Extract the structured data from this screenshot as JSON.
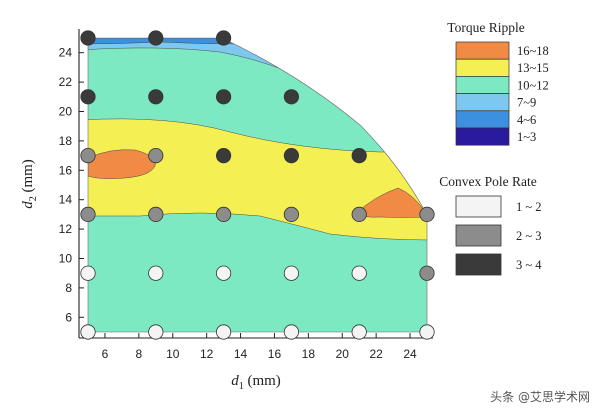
{
  "chart_data": {
    "type": "contour",
    "xlabel_main": "d",
    "xlabel_sub": "1",
    "xlabel_unit": " (mm)",
    "ylabel_main": "d",
    "ylabel_sub": "2",
    "ylabel_unit": " (mm)",
    "xlim": [
      4,
      26
    ],
    "ylim": [
      4,
      25.5
    ],
    "xticks": [
      6,
      8,
      10,
      12,
      14,
      16,
      18,
      20,
      22,
      24
    ],
    "yticks": [
      6,
      8,
      10,
      12,
      14,
      16,
      18,
      20,
      22,
      24
    ],
    "bands": [
      {
        "label": "1~3",
        "color": "#2a1a9e"
      },
      {
        "label": "4~6",
        "color": "#3d8fe0"
      },
      {
        "label": "7~9",
        "color": "#7ec8f0"
      },
      {
        "label": "10~12",
        "color": "#7de9c2"
      },
      {
        "label": "13~15",
        "color": "#f4ef52"
      },
      {
        "label": "16~18",
        "color": "#f08a44"
      }
    ],
    "legend_torque_title": "Torque Ripple",
    "legend_torque": [
      {
        "label": "16~18",
        "color": "#f08a44"
      },
      {
        "label": "13~15",
        "color": "#f4ef52"
      },
      {
        "label": "10~12",
        "color": "#7de9c2"
      },
      {
        "label": "7~9",
        "color": "#7ec8f0"
      },
      {
        "label": "4~6",
        "color": "#3d8fe0"
      },
      {
        "label": "1~3",
        "color": "#2a1a9e"
      }
    ],
    "legend_pole_title": "Convex Pole Rate",
    "legend_pole": [
      {
        "label": "1 ~ 2",
        "color": "#f4f4f4"
      },
      {
        "label": "2 ~ 3",
        "color": "#8c8c8c"
      },
      {
        "label": "3 ~ 4",
        "color": "#3a3a3a"
      }
    ],
    "points": [
      {
        "x": 5,
        "y": 25,
        "rate": "3 ~ 4"
      },
      {
        "x": 9,
        "y": 25,
        "rate": "3 ~ 4"
      },
      {
        "x": 13,
        "y": 25,
        "rate": "3 ~ 4"
      },
      {
        "x": 5,
        "y": 21,
        "rate": "3 ~ 4"
      },
      {
        "x": 9,
        "y": 21,
        "rate": "3 ~ 4"
      },
      {
        "x": 13,
        "y": 21,
        "rate": "3 ~ 4"
      },
      {
        "x": 17,
        "y": 21,
        "rate": "3 ~ 4"
      },
      {
        "x": 5,
        "y": 17,
        "rate": "2 ~ 3"
      },
      {
        "x": 9,
        "y": 17,
        "rate": "2 ~ 3"
      },
      {
        "x": 13,
        "y": 17,
        "rate": "3 ~ 4"
      },
      {
        "x": 17,
        "y": 17,
        "rate": "3 ~ 4"
      },
      {
        "x": 21,
        "y": 17,
        "rate": "3 ~ 4"
      },
      {
        "x": 5,
        "y": 13,
        "rate": "2 ~ 3"
      },
      {
        "x": 9,
        "y": 13,
        "rate": "2 ~ 3"
      },
      {
        "x": 13,
        "y": 13,
        "rate": "2 ~ 3"
      },
      {
        "x": 17,
        "y": 13,
        "rate": "2 ~ 3"
      },
      {
        "x": 21,
        "y": 13,
        "rate": "2 ~ 3"
      },
      {
        "x": 25,
        "y": 13,
        "rate": "2 ~ 3"
      },
      {
        "x": 5,
        "y": 9,
        "rate": "1 ~ 2"
      },
      {
        "x": 9,
        "y": 9,
        "rate": "1 ~ 2"
      },
      {
        "x": 13,
        "y": 9,
        "rate": "1 ~ 2"
      },
      {
        "x": 17,
        "y": 9,
        "rate": "1 ~ 2"
      },
      {
        "x": 21,
        "y": 9,
        "rate": "1 ~ 2"
      },
      {
        "x": 25,
        "y": 9,
        "rate": "2 ~ 3"
      },
      {
        "x": 5,
        "y": 5,
        "rate": "1 ~ 2"
      },
      {
        "x": 9,
        "y": 5,
        "rate": "1 ~ 2"
      },
      {
        "x": 13,
        "y": 5,
        "rate": "1 ~ 2"
      },
      {
        "x": 17,
        "y": 5,
        "rate": "1 ~ 2"
      },
      {
        "x": 21,
        "y": 5,
        "rate": "1 ~ 2"
      },
      {
        "x": 25,
        "y": 5,
        "rate": "1 ~ 2"
      }
    ]
  },
  "watermark": "头条 @艾思学术网"
}
